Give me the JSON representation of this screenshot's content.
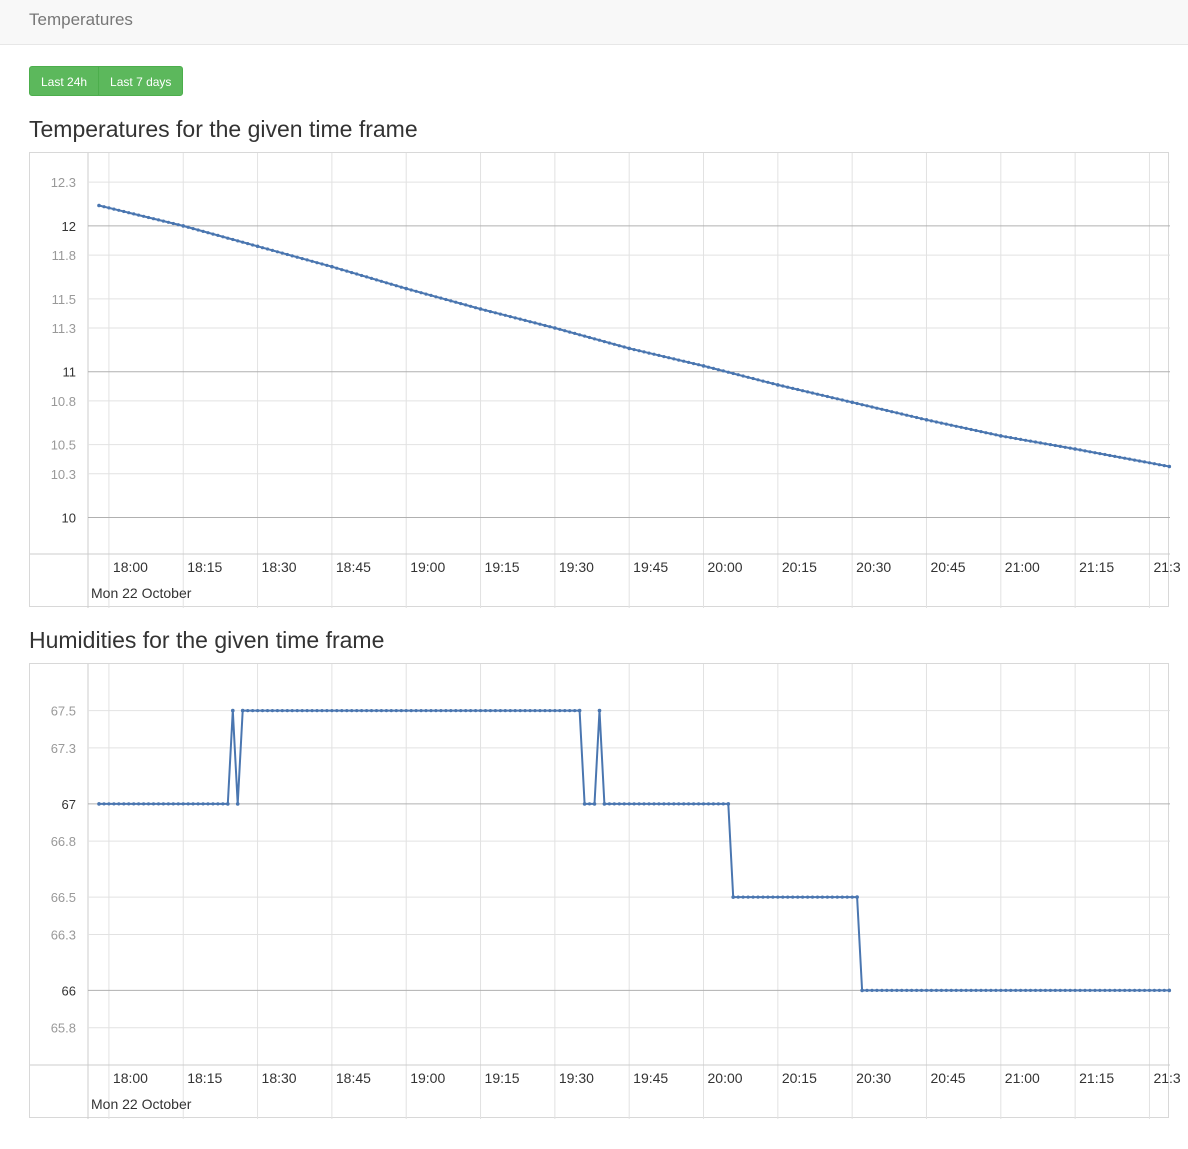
{
  "navbar": {
    "brand": "Temperatures"
  },
  "buttons": {
    "last24": "Last 24h",
    "last7": "Last 7 days"
  },
  "colors": {
    "line": "#4a76b0",
    "button": "#5cb85c",
    "grid": "#e2e2e2",
    "major_grid": "#b0b0b0"
  },
  "chart_data": [
    {
      "type": "line",
      "title": "Temperatures for the given time frame",
      "date_label": "Mon 22 October",
      "x_tick_labels": [
        "18:00",
        "18:15",
        "18:30",
        "18:45",
        "19:00",
        "19:15",
        "19:30",
        "19:45",
        "20:00",
        "20:15",
        "20:30",
        "20:45",
        "21:00",
        "21:15",
        "21:3"
      ],
      "y_tick_labels": [
        "12.3",
        "12",
        "11.8",
        "11.5",
        "11.3",
        "11",
        "10.8",
        "10.5",
        "10.3",
        "10"
      ],
      "y_major_ticks": [
        "12",
        "11",
        "10"
      ],
      "ylim": [
        9.75,
        12.5
      ],
      "x_start": "17:58",
      "x_end": "21:34",
      "series": [
        {
          "values": [
            [
              "17:58",
              12.14
            ],
            [
              "18:15",
              12.0
            ],
            [
              "18:30",
              11.86
            ],
            [
              "18:45",
              11.72
            ],
            [
              "19:00",
              11.57
            ],
            [
              "19:15",
              11.43
            ],
            [
              "19:30",
              11.3
            ],
            [
              "19:45",
              11.16
            ],
            [
              "20:00",
              11.04
            ],
            [
              "20:15",
              10.91
            ],
            [
              "20:30",
              10.79
            ],
            [
              "20:45",
              10.67
            ],
            [
              "21:00",
              10.56
            ],
            [
              "21:15",
              10.47
            ],
            [
              "21:34",
              10.35
            ]
          ]
        }
      ]
    },
    {
      "type": "line",
      "title": "Humidities for the given time frame",
      "date_label": "Mon 22 October",
      "x_tick_labels": [
        "18:00",
        "18:15",
        "18:30",
        "18:45",
        "19:00",
        "19:15",
        "19:30",
        "19:45",
        "20:00",
        "20:15",
        "20:30",
        "20:45",
        "21:00",
        "21:15",
        "21:3"
      ],
      "y_tick_labels": [
        "67.5",
        "67.3",
        "67",
        "66.8",
        "66.5",
        "66.3",
        "66",
        "65.8"
      ],
      "y_major_ticks": [
        "67",
        "66"
      ],
      "ylim": [
        65.6,
        67.75
      ],
      "x_start": "17:58",
      "x_end": "21:34",
      "series": [
        {
          "values": [
            [
              "17:58",
              67.0
            ],
            [
              "18:24",
              67.0
            ],
            [
              "18:25",
              67.5
            ],
            [
              "18:26",
              67.0
            ],
            [
              "18:27",
              67.5
            ],
            [
              "19:35",
              67.5
            ],
            [
              "19:36",
              67.0
            ],
            [
              "19:38",
              67.0
            ],
            [
              "19:39",
              67.5
            ],
            [
              "19:40",
              67.0
            ],
            [
              "20:05",
              67.0
            ],
            [
              "20:06",
              66.5
            ],
            [
              "20:31",
              66.5
            ],
            [
              "20:32",
              66.0
            ],
            [
              "21:34",
              66.0
            ]
          ]
        }
      ]
    }
  ]
}
